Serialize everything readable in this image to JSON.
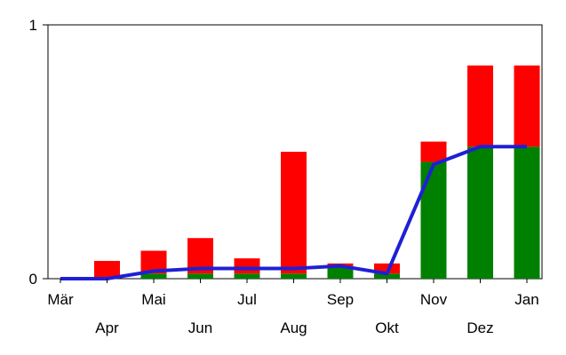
{
  "chart_data": {
    "type": "bar",
    "categories": [
      "Mär",
      "Apr",
      "Mai",
      "Jun",
      "Jul",
      "Aug",
      "Sep",
      "Okt",
      "Nov",
      "Dez",
      "Jan"
    ],
    "series": [
      {
        "type": "bar",
        "color": "#008000",
        "values": [
          0,
          0,
          0.02,
          0.02,
          0.02,
          0.02,
          0.05,
          0.02,
          0.46,
          0.52,
          0.52
        ]
      },
      {
        "type": "bar",
        "color": "#ff0000",
        "values": [
          0,
          0.07,
          0.09,
          0.14,
          0.06,
          0.48,
          0.01,
          0.04,
          0.08,
          0.32,
          0.32
        ]
      },
      {
        "type": "line",
        "color": "#1f1fd6",
        "values": [
          0,
          0,
          0.03,
          0.04,
          0.04,
          0.04,
          0.05,
          0.02,
          0.45,
          0.52,
          0.52
        ]
      }
    ],
    "stacked": true,
    "ylim": [
      0,
      1
    ],
    "yticks": [
      "0",
      "1"
    ],
    "grid": false,
    "legend": "none",
    "title": "",
    "xlabel": "",
    "ylabel": ""
  }
}
